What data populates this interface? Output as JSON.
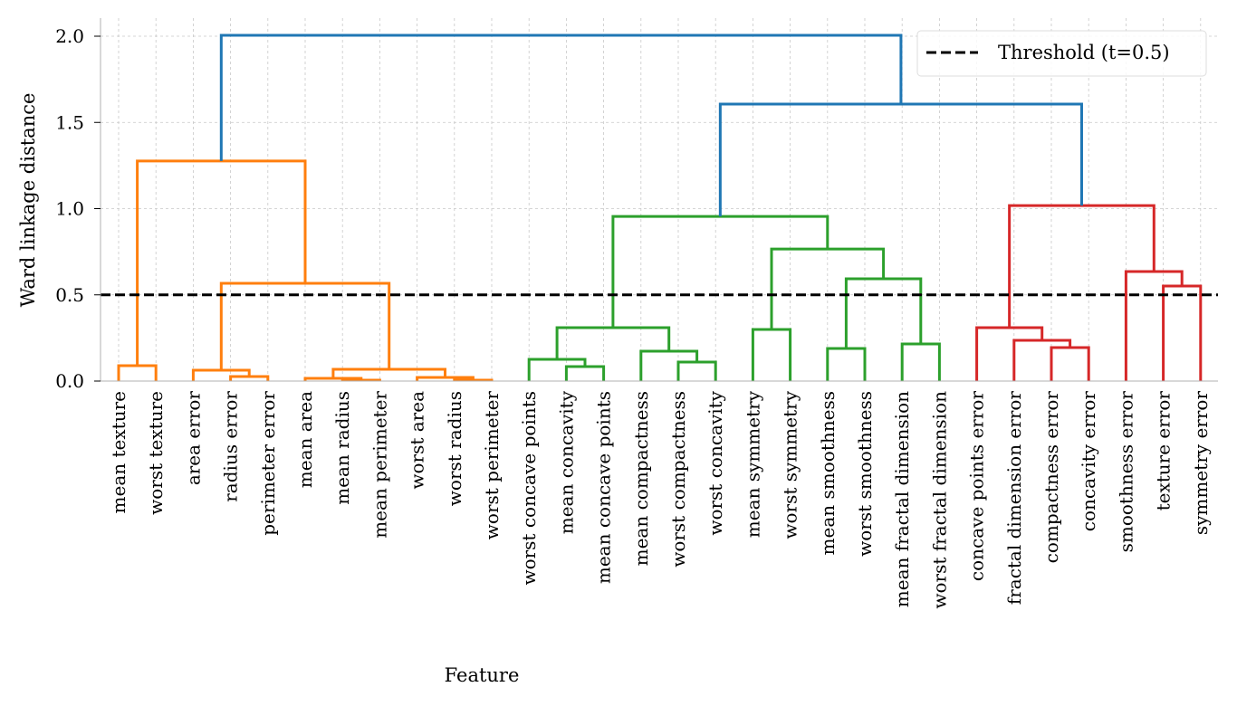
{
  "chart_data": {
    "type": "dendrogram",
    "title": "",
    "xlabel": "Feature",
    "ylabel": "Ward linkage distance",
    "ylim": [
      0,
      2.1
    ],
    "yticks": [
      "0.0",
      "0.5",
      "1.0",
      "1.5",
      "2.0"
    ],
    "grid": true,
    "legend": {
      "placement": "top-right",
      "entries": [
        "Threshold (t=0.5)"
      ]
    },
    "threshold": 0.5,
    "colors": {
      "orange": "#ff7f0e",
      "green": "#2ca02c",
      "red": "#d62728",
      "blue": "#1f77b4",
      "threshold": "#000000"
    },
    "leaves": [
      "mean texture",
      "worst texture",
      "area error",
      "radius error",
      "perimeter error",
      "mean area",
      "mean radius",
      "mean perimeter",
      "worst area",
      "worst radius",
      "worst perimeter",
      "worst concave points",
      "mean concavity",
      "mean concave points",
      "mean compactness",
      "worst compactness",
      "worst concavity",
      "mean symmetry",
      "worst symmetry",
      "mean smoothness",
      "worst smoothness",
      "mean fractal dimension",
      "worst fractal dimension",
      "concave points error",
      "fractal dimension error",
      "compactness error",
      "concavity error",
      "smoothness error",
      "texture error",
      "symmetry error"
    ],
    "merges": [
      {
        "left": 6,
        "right": 7,
        "height": 0.005,
        "color": "orange"
      },
      {
        "left": 9,
        "right": 10,
        "height": 0.005,
        "color": "orange"
      },
      {
        "left": 5,
        "right": 30,
        "height": 0.016,
        "color": "orange"
      },
      {
        "left": 8,
        "right": 31,
        "height": 0.021,
        "color": "orange"
      },
      {
        "left": 3,
        "right": 4,
        "height": 0.026,
        "color": "orange"
      },
      {
        "left": 2,
        "right": 34,
        "height": 0.063,
        "color": "orange"
      },
      {
        "left": 32,
        "right": 33,
        "height": 0.068,
        "color": "orange"
      },
      {
        "left": 0,
        "right": 1,
        "height": 0.089,
        "color": "orange"
      },
      {
        "left": 35,
        "right": 36,
        "height": 0.567,
        "color": "orange"
      },
      {
        "left": 37,
        "right": 38,
        "height": 1.276,
        "color": "orange"
      },
      {
        "left": 12,
        "right": 13,
        "height": 0.084,
        "color": "green"
      },
      {
        "left": 11,
        "right": 40,
        "height": 0.126,
        "color": "green"
      },
      {
        "left": 15,
        "right": 16,
        "height": 0.11,
        "color": "green"
      },
      {
        "left": 14,
        "right": 42,
        "height": 0.173,
        "color": "green"
      },
      {
        "left": 41,
        "right": 43,
        "height": 0.31,
        "color": "green"
      },
      {
        "left": 17,
        "right": 18,
        "height": 0.299,
        "color": "green"
      },
      {
        "left": 19,
        "right": 20,
        "height": 0.189,
        "color": "green"
      },
      {
        "left": 21,
        "right": 22,
        "height": 0.215,
        "color": "green"
      },
      {
        "left": 46,
        "right": 47,
        "height": 0.593,
        "color": "green"
      },
      {
        "left": 45,
        "right": 48,
        "height": 0.766,
        "color": "green"
      },
      {
        "left": 44,
        "right": 49,
        "height": 0.955,
        "color": "green"
      },
      {
        "left": 25,
        "right": 26,
        "height": 0.194,
        "color": "red"
      },
      {
        "left": 24,
        "right": 51,
        "height": 0.236,
        "color": "red"
      },
      {
        "left": 23,
        "right": 52,
        "height": 0.31,
        "color": "red"
      },
      {
        "left": 28,
        "right": 29,
        "height": 0.551,
        "color": "red"
      },
      {
        "left": 27,
        "right": 54,
        "height": 0.635,
        "color": "red"
      },
      {
        "left": 53,
        "right": 55,
        "height": 1.018,
        "color": "red"
      },
      {
        "left": 50,
        "right": 56,
        "height": 1.606,
        "color": "blue"
      },
      {
        "left": 39,
        "right": 57,
        "height": 2.005,
        "color": "blue"
      }
    ]
  }
}
